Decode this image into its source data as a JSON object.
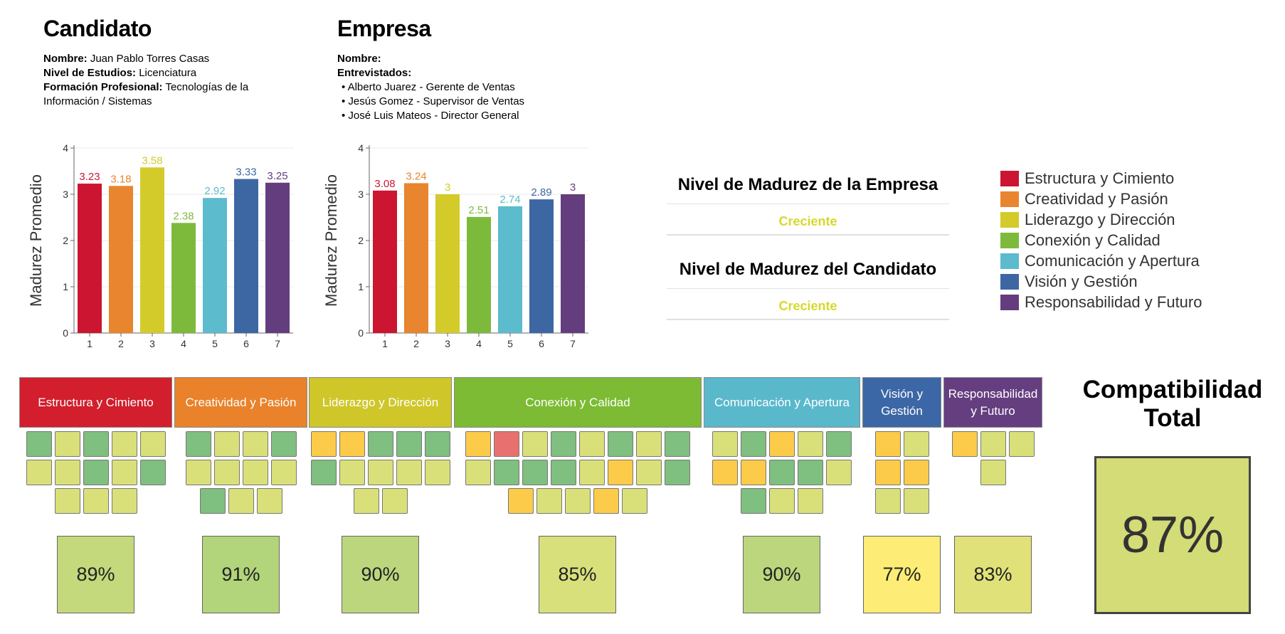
{
  "candidate": {
    "title": "Candidato",
    "name_label": "Nombre:",
    "name": "Juan Pablo Torres Casas",
    "level_label": "Nivel de Estudios:",
    "level": "Licenciatura",
    "training_label": "Formación Profesional:",
    "training_line1": "Tecnologías de la",
    "training_line2": "Información / Sistemas"
  },
  "company": {
    "title": "Empresa",
    "name_label": "Nombre:",
    "interviewed_label": "Entrevistados:",
    "interviewed": [
      "• Alberto Juarez - Gerente de Ventas",
      "• Jesús Gomez - Supervisor de Ventas",
      "• José Luis Mateos - Director General"
    ]
  },
  "chart_data": [
    {
      "type": "bar",
      "ylabel": "Madurez Promedio",
      "categories": [
        "1",
        "2",
        "3",
        "4",
        "5",
        "6",
        "7"
      ],
      "values": [
        3.23,
        3.18,
        3.58,
        2.38,
        2.92,
        3.33,
        3.25
      ],
      "value_labels": [
        "3.23",
        "3.18",
        "3.58",
        "2.38",
        "2.92",
        "3.33",
        "3.25"
      ],
      "ylim": [
        0,
        4
      ],
      "yticks": [
        "0",
        "1",
        "2",
        "3",
        "4"
      ],
      "colors": [
        "#cc1530",
        "#e8852e",
        "#d3cb2a",
        "#7dba3c",
        "#5cbbcc",
        "#3d67a3",
        "#643d7e"
      ]
    },
    {
      "type": "bar",
      "ylabel": "Madurez Promedio",
      "categories": [
        "1",
        "2",
        "3",
        "4",
        "5",
        "6",
        "7"
      ],
      "values": [
        3.08,
        3.24,
        3.0,
        2.51,
        2.74,
        2.89,
        3.0
      ],
      "value_labels": [
        "3.08",
        "3.24",
        "3",
        "2.51",
        "2.74",
        "2.89",
        "3"
      ],
      "ylim": [
        0,
        4
      ],
      "yticks": [
        "0",
        "1",
        "2",
        "3",
        "4"
      ],
      "colors": [
        "#cc1530",
        "#e8852e",
        "#d3cb2a",
        "#7dba3c",
        "#5cbbcc",
        "#3d67a3",
        "#643d7e"
      ]
    }
  ],
  "maturity": {
    "company_title": "Nivel de Madurez de la Empresa",
    "company_value": "Creciente",
    "candidate_title": "Nivel de Madurez del Candidato",
    "candidate_value": "Creciente"
  },
  "legend": [
    {
      "label": "Estructura y Cimiento",
      "color": "#cc1530"
    },
    {
      "label": "Creatividad y Pasión",
      "color": "#e8852e"
    },
    {
      "label": "Liderazgo y Dirección",
      "color": "#d3cb2a"
    },
    {
      "label": "Conexión y Calidad",
      "color": "#7dba3c"
    },
    {
      "label": "Comunicación y Apertura",
      "color": "#5cbbcc"
    },
    {
      "label": "Visión y Gestión",
      "color": "#3d67a3"
    },
    {
      "label": "Responsabilidad y Futuro",
      "color": "#643d7e"
    }
  ],
  "cell_colors": {
    "G": "#7fbf7f",
    "Y": "#d9e07a",
    "O": "#fdcb4a",
    "R": "#e8716f"
  },
  "categories": [
    {
      "label": "Estructura y Cimiento",
      "color": "#d21e2d",
      "rows": [
        "GYGYY",
        "YYGYG",
        "YYY"
      ],
      "score": "89%",
      "score_color": "#c3d97b"
    },
    {
      "label": "Creatividad y Pasión",
      "color": "#e9822a",
      "rows": [
        "GYYG",
        "YYYY",
        "GYY"
      ],
      "score": "91%",
      "score_color": "#b2d47b"
    },
    {
      "label": "Liderazgo y Dirección",
      "color": "#cfc62a",
      "rows": [
        "OOGGG",
        "GYYYY",
        "YY"
      ],
      "score": "90%",
      "score_color": "#bcd67d"
    },
    {
      "label": "Conexión y Calidad",
      "color": "#7cbb33",
      "rows": [
        "ORYGYGYG",
        "YGGGYOYG",
        "OYYOY"
      ],
      "score": "85%",
      "score_color": "#d8e07b"
    },
    {
      "label": "Comunicación y Apertura",
      "color": "#5ab8cb",
      "rows": [
        "YGOYG",
        "OOGGY",
        "GYY"
      ],
      "score": "90%",
      "score_color": "#bcd67d"
    },
    {
      "label": "Visión y Gestión",
      "color": "#3c67a6",
      "rows": [
        "OY",
        "OO",
        "YY"
      ],
      "score": "77%",
      "score_color": "#fdec75"
    },
    {
      "label": "Responsabilidad y Futuro",
      "color": "#653e80",
      "rows": [
        "OYY",
        "Y"
      ],
      "score": "83%",
      "score_color": "#e0e279"
    }
  ],
  "total": {
    "title": "Compatibilidad Total",
    "value": "87%"
  }
}
